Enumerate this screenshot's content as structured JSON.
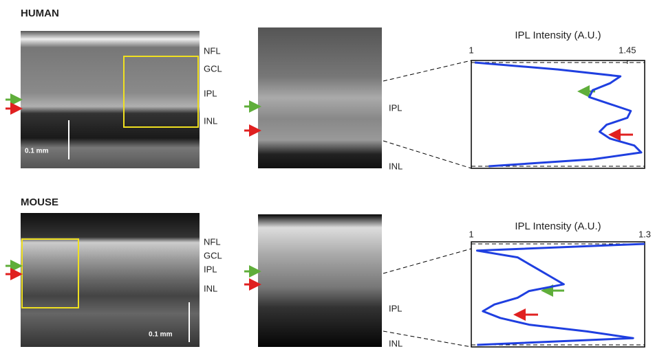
{
  "panels": [
    {
      "label": "HUMAN",
      "layers": [
        "NFL",
        "GCL",
        "IPL",
        "INL"
      ],
      "scale_bar": "0.1 mm",
      "zoom_labels": [
        "IPL",
        "INL"
      ]
    },
    {
      "label": "MOUSE",
      "layers": [
        "NFL",
        "GCL",
        "IPL",
        "INL"
      ],
      "scale_bar": "0.1 mm",
      "zoom_labels": [
        "IPL",
        "INL"
      ]
    }
  ],
  "chart_data": [
    {
      "type": "line",
      "title": "IPL Intensity (A.U.)",
      "xlim": [
        1,
        1.5
      ],
      "xticks": [
        1,
        1.45
      ],
      "color": "#1f3fe0",
      "values": [
        1.01,
        1.25,
        1.43,
        1.4,
        1.35,
        1.34,
        1.4,
        1.46,
        1.45,
        1.39,
        1.37,
        1.4,
        1.47,
        1.49,
        1.35,
        1.05
      ]
    },
    {
      "type": "line",
      "title": "IPL Intensity (A.U.)",
      "xlim": [
        1,
        1.3
      ],
      "xticks": [
        1,
        1.3
      ],
      "color": "#1f3fe0",
      "values": [
        1.3,
        1.01,
        1.08,
        1.1,
        1.12,
        1.14,
        1.16,
        1.1,
        1.08,
        1.04,
        1.02,
        1.05,
        1.1,
        1.2,
        1.28,
        1.01
      ]
    }
  ]
}
